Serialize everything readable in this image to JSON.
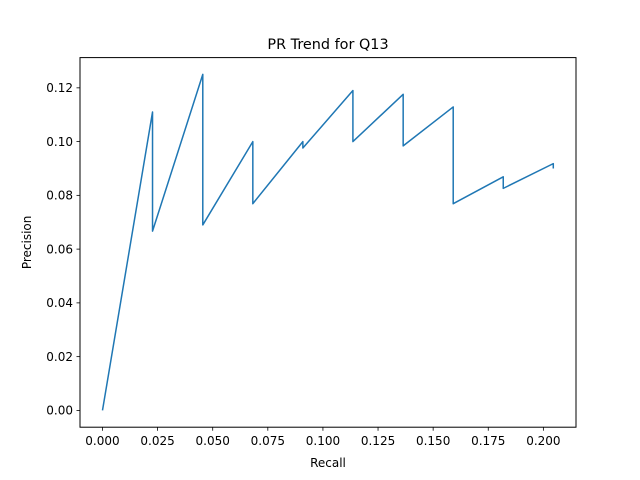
{
  "chart_data": {
    "type": "line",
    "title": "PR Trend for Q13",
    "xlabel": "Recall",
    "ylabel": "Precision",
    "xlim": [
      -0.0102,
      0.2148
    ],
    "ylim": [
      -0.00625,
      0.13125
    ],
    "grid": false,
    "x_ticks": [
      0.0,
      0.025,
      0.05,
      0.075,
      0.1,
      0.125,
      0.15,
      0.175,
      0.2
    ],
    "x_tick_labels": [
      "0.000",
      "0.025",
      "0.050",
      "0.075",
      "0.100",
      "0.125",
      "0.150",
      "0.175",
      "0.200"
    ],
    "y_ticks": [
      0.0,
      0.02,
      0.04,
      0.06,
      0.08,
      0.1,
      0.12
    ],
    "y_tick_labels": [
      "0.00",
      "0.02",
      "0.04",
      "0.06",
      "0.08",
      "0.10",
      "0.12"
    ],
    "series": [
      {
        "color": "#1f77b4",
        "x": [
          0.0,
          0.0227,
          0.0227,
          0.0455,
          0.0455,
          0.0682,
          0.0682,
          0.0909,
          0.0909,
          0.1136,
          0.1136,
          0.1364,
          0.1364,
          0.1591,
          0.1591,
          0.1818,
          0.1818,
          0.2045,
          0.2045
        ],
        "y": [
          0.0,
          0.111,
          0.0667,
          0.125,
          0.069,
          0.1,
          0.0769,
          0.1,
          0.0976,
          0.119,
          0.1,
          0.1176,
          0.0984,
          0.1129,
          0.0769,
          0.0869,
          0.0826,
          0.0918,
          0.09
        ]
      }
    ]
  }
}
